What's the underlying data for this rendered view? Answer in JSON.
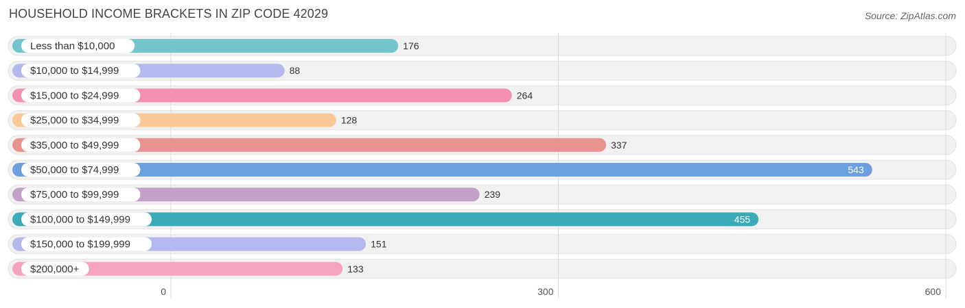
{
  "chart_data": {
    "type": "bar",
    "orientation": "horizontal",
    "title": "HOUSEHOLD INCOME BRACKETS IN ZIP CODE 42029",
    "source": "Source: ZipAtlas.com",
    "categories": [
      "Less than $10,000",
      "$10,000 to $14,999",
      "$15,000 to $24,999",
      "$25,000 to $34,999",
      "$35,000 to $49,999",
      "$50,000 to $74,999",
      "$75,000 to $99,999",
      "$100,000 to $149,999",
      "$150,000 to $199,999",
      "$200,000+"
    ],
    "values": [
      176,
      88,
      264,
      128,
      337,
      543,
      239,
      455,
      151,
      133
    ],
    "value_labels": [
      "176",
      "88",
      "264",
      "128",
      "337",
      "543",
      "239",
      "455",
      "151",
      "133"
    ],
    "colors": [
      "#72c5cb",
      "#b3b9ed",
      "#f38fb1",
      "#fbc997",
      "#e99390",
      "#6b9fe0",
      "#c4a1c9",
      "#3aabb7",
      "#b3b9ed",
      "#f5a3bf"
    ],
    "xlim": [
      0,
      600
    ],
    "xticks": [
      0,
      300,
      600
    ],
    "xtick_labels": [
      "0",
      "300",
      "600"
    ],
    "xlabel": "",
    "ylabel": "",
    "grid": true,
    "legend": "none"
  }
}
